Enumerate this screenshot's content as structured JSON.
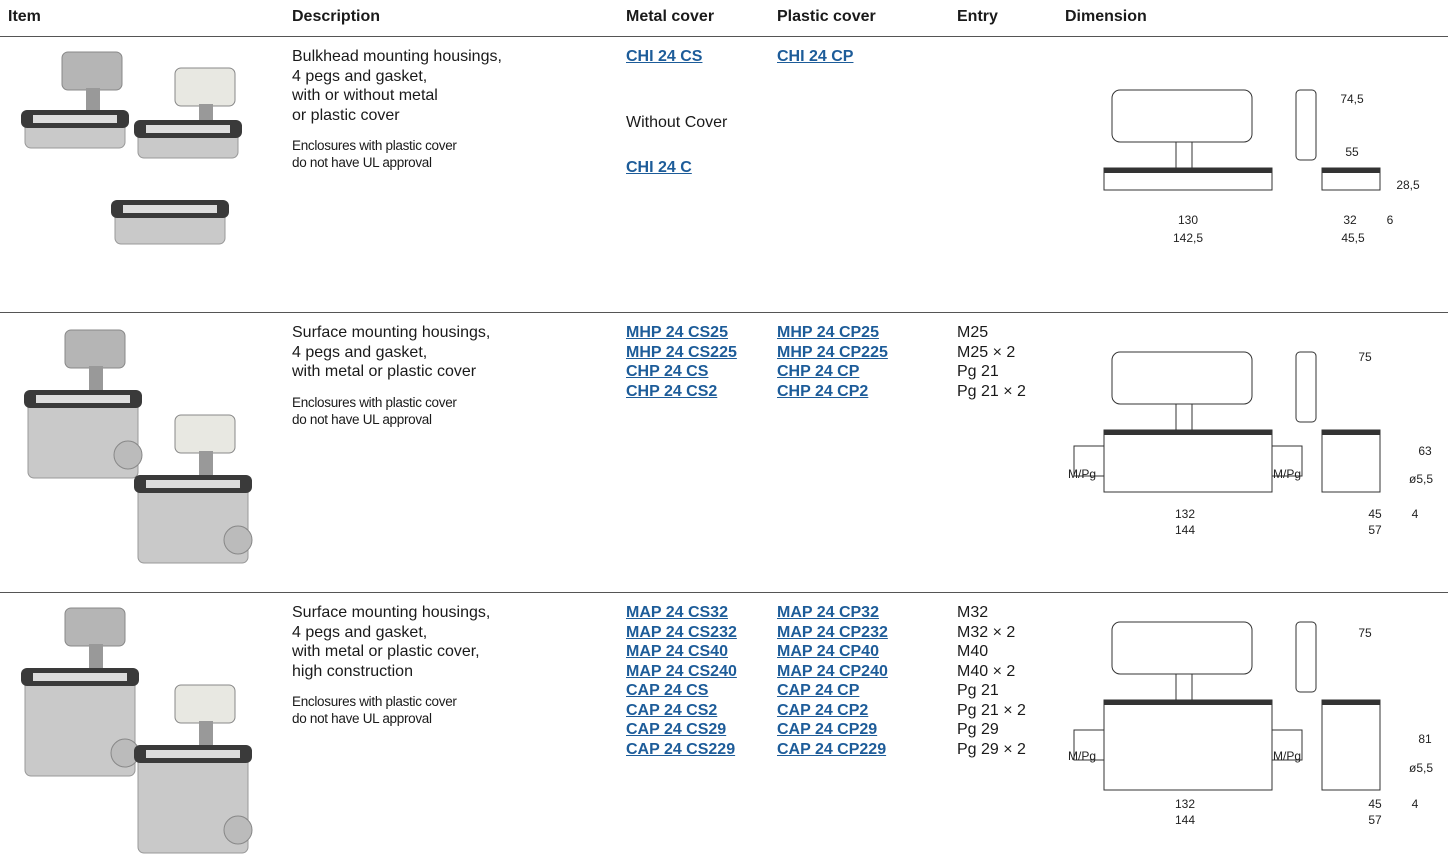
{
  "header": [
    "Item",
    "Description",
    "Metal cover",
    "Plastic cover",
    "Entry",
    "Dimension"
  ],
  "rows": [
    {
      "description": [
        "Bulkhead mounting housings,",
        "4 pegs and gasket,",
        "with or without metal",
        "or plastic cover"
      ],
      "note": [
        "Enclosures with plastic cover",
        "do not have UL approval"
      ],
      "metal": [
        "CHI 24 CS"
      ],
      "alt_label": "Without Cover",
      "alt_metal": [
        "CHI 24 C"
      ],
      "plastic": [
        "CHI 24 CP"
      ],
      "entry": [],
      "dimensions": [
        "74,5",
        "55",
        "28,5",
        "6",
        "32",
        "45,5",
        "130",
        "142,5"
      ]
    },
    {
      "description": [
        "Surface mounting housings,",
        "4 pegs and gasket,",
        "with metal or plastic cover"
      ],
      "note": [
        "Enclosures with plastic cover",
        "do not have UL approval"
      ],
      "metal": [
        "MHP 24 CS25",
        "MHP 24 CS225",
        "CHP 24 CS",
        "CHP 24 CS2"
      ],
      "plastic": [
        "MHP 24 CP25",
        "MHP 24 CP225",
        "CHP 24 CP",
        "CHP 24 CP2"
      ],
      "entry": [
        "M25",
        "M25 × 2",
        "Pg 21",
        "Pg 21 × 2"
      ],
      "dimensions": [
        "M/Pg",
        "M/Pg",
        "75",
        "63",
        "ø5,5",
        "45",
        "4",
        "57",
        "132",
        "144"
      ]
    },
    {
      "description": [
        "Surface mounting housings,",
        "4 pegs and gasket,",
        "with metal or plastic cover,",
        "high construction"
      ],
      "note": [
        "Enclosures with plastic cover",
        "do not have UL approval"
      ],
      "metal": [
        "MAP 24 CS32",
        "MAP 24 CS232",
        "MAP 24 CS40",
        "MAP 24 CS240",
        "CAP 24 CS",
        "CAP 24 CS2",
        "CAP 24 CS29",
        "CAP 24 CS229"
      ],
      "plastic": [
        "MAP 24 CP32",
        "MAP 24 CP232",
        "MAP 24 CP40",
        "MAP 24 CP240",
        "CAP 24 CP",
        "CAP 24 CP2",
        "CAP 24 CP29",
        "CAP 24 CP229"
      ],
      "entry": [
        "M32",
        "M32 × 2",
        "M40",
        "M40 × 2",
        "Pg 21",
        "Pg 21 × 2",
        "Pg 29",
        "Pg 29 × 2"
      ],
      "dimensions": [
        "M/Pg",
        "M/Pg",
        "75",
        "81",
        "ø5,5",
        "45",
        "4",
        "57",
        "132",
        "144"
      ]
    }
  ]
}
